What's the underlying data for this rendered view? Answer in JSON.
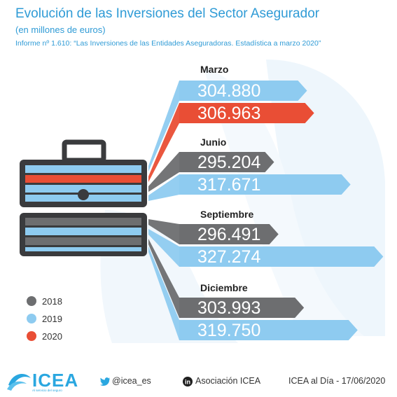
{
  "header": {
    "title": "Evolución de las Inversiones del Sector Asegurador",
    "subtitle": "(en millones de euros)",
    "report": "Informe nº 1.610: “Las Inversiones de las Entidades Aseguradoras. Estadística a marzo 2020”"
  },
  "colors": {
    "2018": "#6d6e70",
    "2019": "#8ecbf0",
    "2020": "#e94e35",
    "accent": "#2f9bd6"
  },
  "chart_data": {
    "type": "bar",
    "title": "Evolución de las Inversiones del Sector Asegurador",
    "subtitle": "(en millones de euros)",
    "groups": [
      {
        "period": "Marzo",
        "bars": [
          {
            "year": "2019",
            "value": 304880,
            "label": "304.880"
          },
          {
            "year": "2020",
            "value": 306963,
            "label": "306.963"
          }
        ]
      },
      {
        "period": "Junio",
        "bars": [
          {
            "year": "2018",
            "value": 295204,
            "label": "295.204"
          },
          {
            "year": "2019",
            "value": 317671,
            "label": "317.671"
          }
        ]
      },
      {
        "period": "Septiembre",
        "bars": [
          {
            "year": "2018",
            "value": 296491,
            "label": "296.491"
          },
          {
            "year": "2019",
            "value": 327274,
            "label": "327.274"
          }
        ]
      },
      {
        "period": "Diciembre",
        "bars": [
          {
            "year": "2018",
            "value": 303993,
            "label": "303.993"
          },
          {
            "year": "2019",
            "value": 319750,
            "label": "319.750"
          }
        ]
      }
    ],
    "legend": [
      {
        "name": "2018"
      },
      {
        "name": "2019"
      },
      {
        "name": "2020"
      }
    ],
    "legend_position": "bottom-left"
  },
  "footer": {
    "logo": "ICEA",
    "logo_tagline": "Al servicio del seguro",
    "twitter": "@icea_es",
    "linkedin": "Asociación ICEA",
    "linkedin_icon_text": "in",
    "date": "ICEA al Día - 17/06/2020"
  }
}
